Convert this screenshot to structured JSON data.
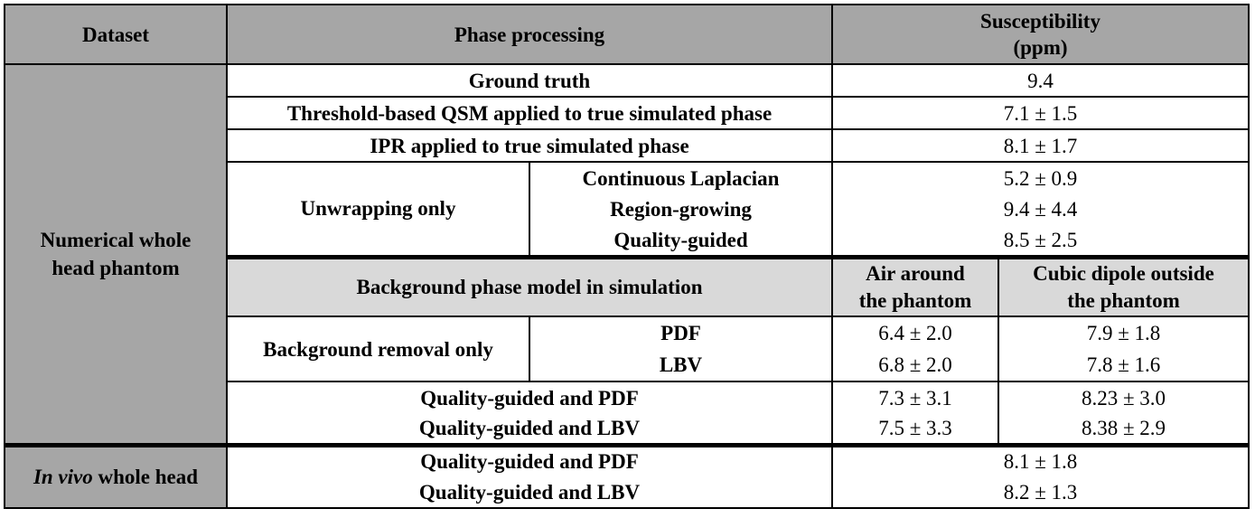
{
  "header": {
    "dataset": "Dataset",
    "phase_processing": "Phase processing",
    "susceptibility_line1": "Susceptibility",
    "susceptibility_line2": "(ppm)"
  },
  "numerical": {
    "dataset_line1": "Numerical whole",
    "dataset_line2": "head phantom",
    "ground_truth": {
      "label": "Ground truth",
      "value": "9.4"
    },
    "threshold_qsm": {
      "label": "Threshold-based QSM applied to true simulated phase",
      "value": "7.1 ± 1.5"
    },
    "ipr": {
      "label": "IPR applied to true simulated phase",
      "value": "8.1 ± 1.7"
    },
    "unwrapping": {
      "label": "Unwrapping only",
      "methods": [
        "Continuous Laplacian",
        "Region-growing",
        "Quality-guided"
      ],
      "values": [
        "5.2 ± 0.9",
        "9.4 ± 4.4",
        "8.5 ± 2.5"
      ]
    },
    "background_model": {
      "label": "Background phase model in simulation",
      "col1_line1": "Air around",
      "col1_line2": "the phantom",
      "col2_line1": "Cubic dipole outside",
      "col2_line2": "the phantom"
    },
    "background_removal": {
      "label": "Background removal only",
      "methods": [
        "PDF",
        "LBV"
      ],
      "air": [
        "6.4 ± 2.0",
        "6.8 ± 2.0"
      ],
      "cubic": [
        "7.9 ± 1.8",
        "7.8 ± 1.6"
      ]
    },
    "combined": {
      "methods": [
        "Quality-guided and PDF",
        "Quality-guided and LBV"
      ],
      "air": [
        "7.3 ± 3.1",
        "7.5 ± 3.3"
      ],
      "cubic": [
        "8.23 ± 3.0",
        "8.38 ± 2.9"
      ]
    }
  },
  "invivo": {
    "dataset_italic": "In vivo",
    "dataset_rest": " whole head",
    "methods": [
      "Quality-guided and PDF",
      "Quality-guided and LBV"
    ],
    "values": [
      "8.1 ± 1.8",
      "8.2 ± 1.3"
    ]
  }
}
